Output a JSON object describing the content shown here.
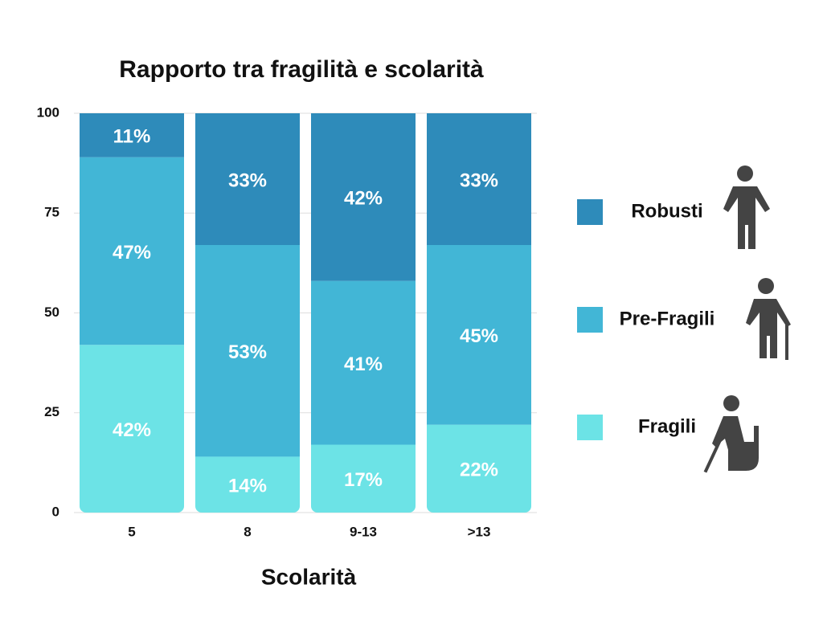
{
  "chart_data": {
    "type": "stacked_bar",
    "title": "Rapporto tra fragilità e scolarità",
    "x_label": "Scolarità",
    "categories": [
      "5",
      "8",
      "9-13",
      ">13"
    ],
    "series": [
      {
        "name": "Fragili",
        "color": "#6ce3e6",
        "values": [
          42,
          14,
          17,
          22
        ],
        "value_labels": [
          "42%",
          "14%",
          "17%",
          "22%"
        ]
      },
      {
        "name": "Pre-Fragili",
        "color": "#42b6d6",
        "values": [
          47,
          53,
          41,
          45
        ],
        "value_labels": [
          "47%",
          "53%",
          "41%",
          "45%"
        ]
      },
      {
        "name": "Robusti",
        "color": "#2e8bba",
        "values": [
          11,
          33,
          42,
          33
        ],
        "value_labels": [
          "11%",
          "33%",
          "42%",
          "33%"
        ]
      }
    ],
    "ylim": [
      0,
      100
    ],
    "yticks": [
      0,
      25,
      50,
      75,
      100
    ],
    "grid": true,
    "legend": "right"
  }
}
